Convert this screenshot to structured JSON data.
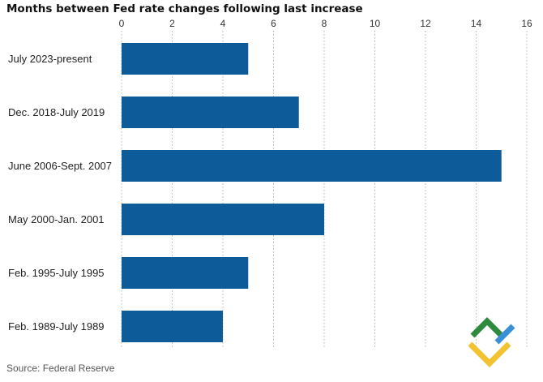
{
  "chart_data": {
    "type": "bar",
    "orientation": "horizontal",
    "title": "Months between Fed rate changes following last increase",
    "categories": [
      "July 2023-present",
      "Dec. 2018-July 2019",
      "June 2006-Sept. 2007",
      "May 2000-Jan. 2001",
      "Feb. 1995-July 1995",
      "Feb. 1989-July 1989"
    ],
    "values": [
      5,
      7,
      15,
      8,
      5,
      4
    ],
    "xlim": [
      0,
      16
    ],
    "xticks": [
      "0",
      "2",
      "4",
      "6",
      "8",
      "10",
      "12",
      "14",
      "16"
    ],
    "grid": true,
    "xlabel": "",
    "ylabel": "",
    "source": "Source: Federal Reserve",
    "bar_color": "#0d5c99"
  },
  "watermark": {
    "name": "logo-mark",
    "colors": [
      "#2e8b3e",
      "#f2c230",
      "#3a8fd6"
    ]
  }
}
